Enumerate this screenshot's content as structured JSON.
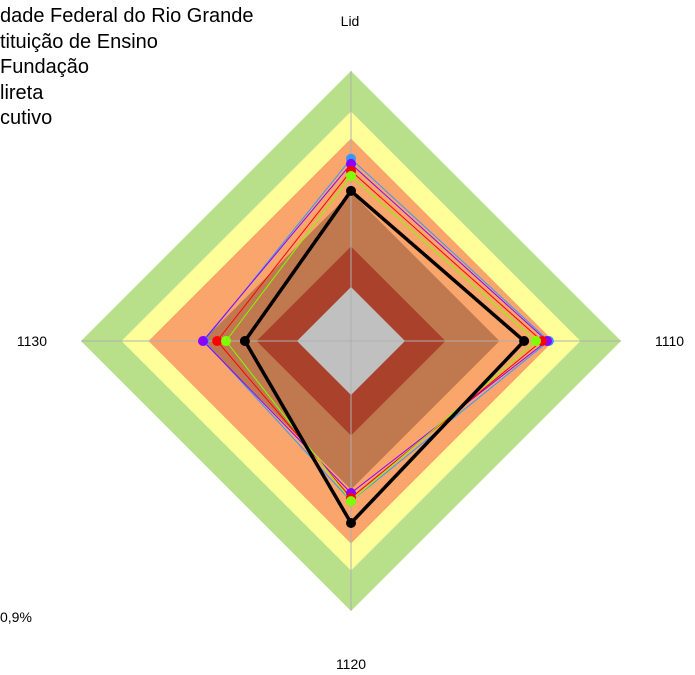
{
  "chart_data": {
    "type": "radar",
    "axes": [
      "Lid",
      "1110",
      "1120",
      "1130"
    ],
    "range": [
      0,
      1
    ],
    "bands": [
      {
        "from": 0.85,
        "to": 1.0,
        "color": "#b8e08a"
      },
      {
        "from": 0.75,
        "to": 0.85,
        "color": "#ffff99"
      },
      {
        "from": 0.55,
        "to": 0.75,
        "color": "#f9a56b"
      },
      {
        "from": 0.35,
        "to": 0.55,
        "color": "#c0784f"
      },
      {
        "from": 0.2,
        "to": 0.35,
        "color": "#a9412b"
      },
      {
        "from": 0.0,
        "to": 0.2,
        "color": "#c0c0c0"
      }
    ],
    "series": [
      {
        "name": "dade Federal do Rio Grande",
        "color": "#3399ff",
        "values": [
          0.675,
          0.733,
          0.593,
          0.544
        ]
      },
      {
        "name": "tituição de Ensino",
        "color": "#8b00ff",
        "values": [
          0.656,
          0.726,
          0.563,
          0.548
        ]
      },
      {
        "name": "Fundação",
        "color": "#ff0000",
        "values": [
          0.63,
          0.707,
          0.581,
          0.496
        ]
      },
      {
        "name": "lireta",
        "color": "#80ff00",
        "values": [
          0.611,
          0.685,
          0.593,
          0.463
        ]
      },
      {
        "name": "cutivo",
        "color": "#000000",
        "values": [
          0.556,
          0.641,
          0.674,
          0.393
        ],
        "thick": true
      }
    ],
    "grid": true
  },
  "notes": {
    "left_fragment": "0,9%"
  }
}
